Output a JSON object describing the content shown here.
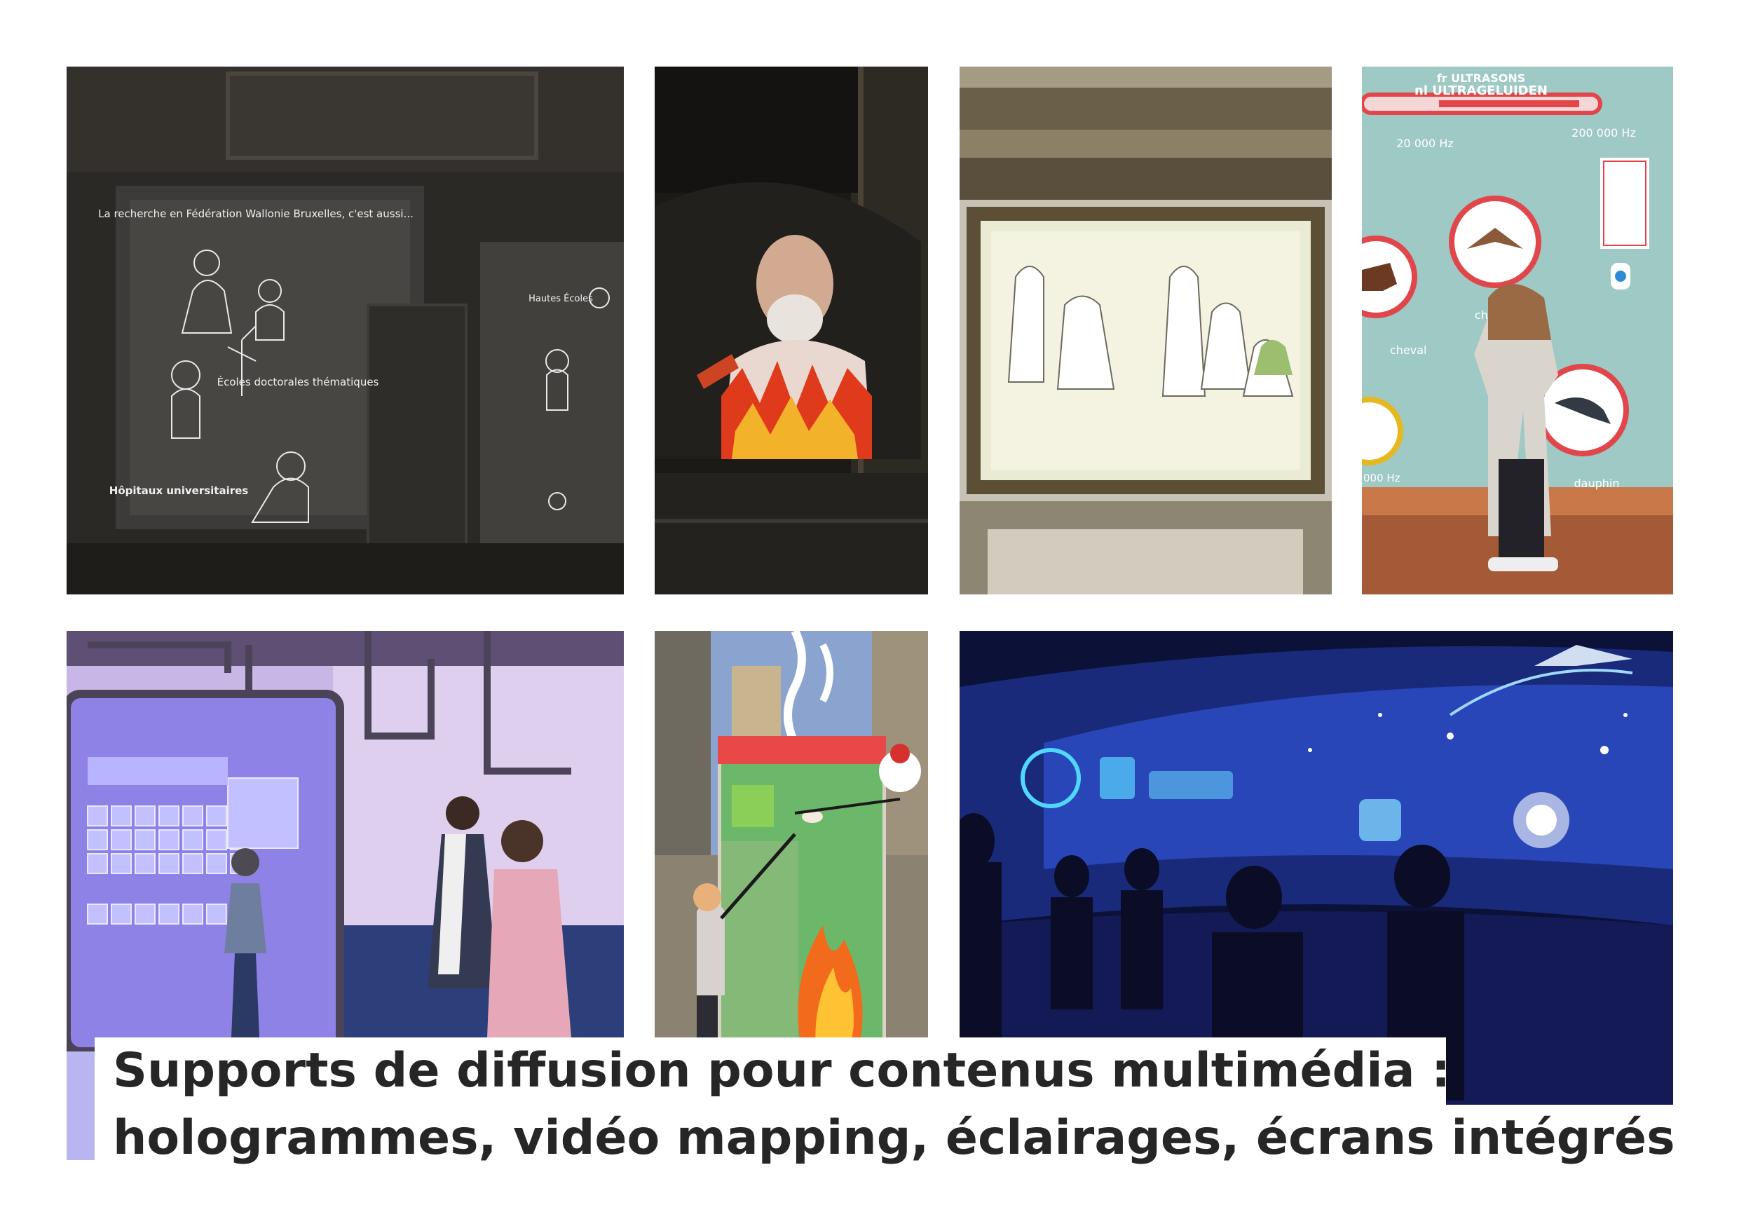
{
  "photos": {
    "p1": {
      "heading": "La recherche en Fédération Wallonie Bruxelles, c'est aussi...",
      "label_ecoles": "Écoles doctorales thématiques",
      "label_hopitaux": "Hôpitaux universitaires",
      "label_hautes": "Hautes Écoles"
    },
    "p4": {
      "title_fr": "fr ULTRASONS",
      "title_nl": "nl ULTRAGELUIDEN",
      "freq_low": "20 000 Hz",
      "freq_high": "200 000 Hz",
      "freq_bottom": "000 Hz",
      "animal_cheval": "cheval",
      "animal_chauve": "chauve",
      "animal_dauphin": "dauphin"
    }
  },
  "caption": {
    "line1": "Supports de diffusion pour contenus multimédia :",
    "line2": "hologrammes, vidéo mapping, éclairages, écrans intégrés"
  }
}
